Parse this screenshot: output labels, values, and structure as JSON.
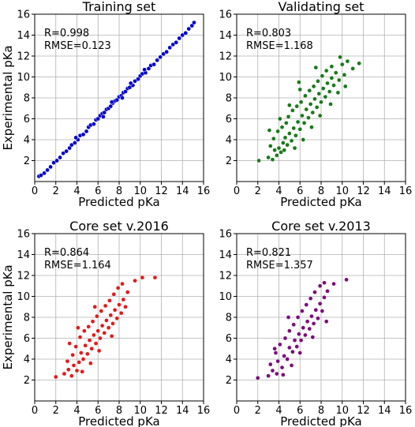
{
  "chart_data": [
    {
      "type": "scatter",
      "title": "Training set",
      "xlabel": "Predicted pKa",
      "ylabel": "Experimental pKa",
      "xlim": [
        0,
        16
      ],
      "ylim": [
        0,
        16
      ],
      "xticks": [
        0,
        2,
        4,
        6,
        8,
        10,
        12,
        14,
        16
      ],
      "yticks": [
        2,
        4,
        6,
        8,
        10,
        12,
        14,
        16
      ],
      "grid": true,
      "color": "#0000cc",
      "annotations": [
        "R=0.998",
        "RMSE=0.123"
      ],
      "points": [
        [
          0.4,
          0.5
        ],
        [
          0.6,
          0.6
        ],
        [
          0.9,
          0.8
        ],
        [
          1.2,
          1.1
        ],
        [
          1.5,
          1.4
        ],
        [
          1.8,
          1.8
        ],
        [
          2.1,
          2.0
        ],
        [
          2.4,
          2.3
        ],
        [
          2.7,
          2.7
        ],
        [
          3.0,
          2.9
        ],
        [
          3.3,
          3.2
        ],
        [
          3.5,
          3.5
        ],
        [
          3.8,
          3.7
        ],
        [
          4.1,
          4.0
        ],
        [
          4.3,
          4.4
        ],
        [
          4.6,
          4.5
        ],
        [
          4.9,
          4.8
        ],
        [
          5.1,
          5.2
        ],
        [
          5.3,
          5.4
        ],
        [
          5.6,
          5.5
        ],
        [
          5.8,
          5.9
        ],
        [
          6.0,
          6.0
        ],
        [
          6.2,
          6.3
        ],
        [
          6.4,
          6.5
        ],
        [
          6.6,
          6.6
        ],
        [
          6.8,
          6.9
        ],
        [
          7.0,
          7.0
        ],
        [
          7.2,
          7.2
        ],
        [
          7.4,
          7.5
        ],
        [
          7.6,
          7.7
        ],
        [
          7.8,
          7.8
        ],
        [
          8.0,
          8.1
        ],
        [
          8.2,
          8.2
        ],
        [
          8.4,
          8.5
        ],
        [
          8.6,
          8.6
        ],
        [
          8.8,
          8.9
        ],
        [
          9.0,
          9.0
        ],
        [
          9.3,
          9.2
        ],
        [
          9.5,
          9.6
        ],
        [
          9.8,
          9.8
        ],
        [
          10.0,
          10.1
        ],
        [
          10.2,
          10.3
        ],
        [
          10.5,
          10.4
        ],
        [
          10.8,
          10.8
        ],
        [
          11.0,
          11.1
        ],
        [
          11.3,
          11.2
        ],
        [
          11.6,
          11.6
        ],
        [
          11.9,
          11.9
        ],
        [
          12.2,
          12.2
        ],
        [
          12.5,
          12.4
        ],
        [
          12.8,
          12.8
        ],
        [
          13.1,
          13.1
        ],
        [
          13.4,
          13.3
        ],
        [
          13.7,
          13.7
        ],
        [
          14.0,
          14.0
        ],
        [
          14.3,
          14.2
        ],
        [
          14.6,
          14.6
        ],
        [
          14.9,
          14.9
        ],
        [
          15.1,
          15.2
        ],
        [
          6.5,
          6.2
        ],
        [
          7.3,
          7.6
        ],
        [
          8.3,
          8.0
        ],
        [
          9.1,
          9.4
        ],
        [
          10.4,
          10.7
        ],
        [
          3.9,
          4.2
        ]
      ]
    },
    {
      "type": "scatter",
      "title": "Validating set",
      "xlabel": "Predicted pKa",
      "ylabel": "",
      "xlim": [
        0,
        16
      ],
      "ylim": [
        0,
        16
      ],
      "xticks": [
        0,
        2,
        4,
        6,
        8,
        10,
        12,
        14,
        16
      ],
      "yticks": [
        2,
        4,
        6,
        8,
        10,
        12,
        14,
        16
      ],
      "grid": true,
      "color": "#1a7a1a",
      "annotations": [
        "R=0.803",
        "RMSE=1.168"
      ],
      "points": [
        [
          2.1,
          2.0
        ],
        [
          3.0,
          2.3
        ],
        [
          3.4,
          2.1
        ],
        [
          3.8,
          2.5
        ],
        [
          3.2,
          3.4
        ],
        [
          3.6,
          3.0
        ],
        [
          4.0,
          3.2
        ],
        [
          3.5,
          4.1
        ],
        [
          4.2,
          2.8
        ],
        [
          4.4,
          3.7
        ],
        [
          3.9,
          4.8
        ],
        [
          4.6,
          4.2
        ],
        [
          4.8,
          3.5
        ],
        [
          4.3,
          5.2
        ],
        [
          5.0,
          4.6
        ],
        [
          4.7,
          5.6
        ],
        [
          5.2,
          3.9
        ],
        [
          5.4,
          5.1
        ],
        [
          4.9,
          6.2
        ],
        [
          5.6,
          4.4
        ],
        [
          5.8,
          5.7
        ],
        [
          5.3,
          6.8
        ],
        [
          6.0,
          5.0
        ],
        [
          6.2,
          6.3
        ],
        [
          5.7,
          7.2
        ],
        [
          6.4,
          5.6
        ],
        [
          6.6,
          6.9
        ],
        [
          6.1,
          7.6
        ],
        [
          6.8,
          6.1
        ],
        [
          7.0,
          7.4
        ],
        [
          6.5,
          8.2
        ],
        [
          7.2,
          6.6
        ],
        [
          7.4,
          7.9
        ],
        [
          6.9,
          8.7
        ],
        [
          7.6,
          7.1
        ],
        [
          7.8,
          8.4
        ],
        [
          7.3,
          9.1
        ],
        [
          8.0,
          7.6
        ],
        [
          8.2,
          8.9
        ],
        [
          7.7,
          9.6
        ],
        [
          8.4,
          8.1
        ],
        [
          8.6,
          9.4
        ],
        [
          8.1,
          10.1
        ],
        [
          8.8,
          8.6
        ],
        [
          9.0,
          9.9
        ],
        [
          8.5,
          10.6
        ],
        [
          9.2,
          9.2
        ],
        [
          9.4,
          10.4
        ],
        [
          9.0,
          11.0
        ],
        [
          9.7,
          9.7
        ],
        [
          10.0,
          11.2
        ],
        [
          10.2,
          10.2
        ],
        [
          10.5,
          11.5
        ],
        [
          11.0,
          10.8
        ],
        [
          11.6,
          11.3
        ],
        [
          9.8,
          11.9
        ],
        [
          5.5,
          3.2
        ],
        [
          6.3,
          4.0
        ],
        [
          7.1,
          5.2
        ],
        [
          7.9,
          6.3
        ],
        [
          4.1,
          6.0
        ],
        [
          5.0,
          7.3
        ],
        [
          6.0,
          8.8
        ],
        [
          3.1,
          4.9
        ],
        [
          8.9,
          7.4
        ],
        [
          9.6,
          8.5
        ],
        [
          10.3,
          9.1
        ],
        [
          4.5,
          3.0
        ],
        [
          5.9,
          9.5
        ],
        [
          7.5,
          10.9
        ]
      ]
    },
    {
      "type": "scatter",
      "title": "Core set v.2016",
      "xlabel": "Predicted pKa",
      "ylabel": "Experimental pKa",
      "xlim": [
        0,
        16
      ],
      "ylim": [
        0,
        16
      ],
      "xticks": [
        0,
        2,
        4,
        6,
        8,
        10,
        12,
        14,
        16
      ],
      "yticks": [
        2,
        4,
        6,
        8,
        10,
        12,
        14,
        16
      ],
      "grid": true,
      "color": "#e31a1a",
      "annotations": [
        "R=0.864",
        "RMSE=1.164"
      ],
      "points": [
        [
          2.0,
          2.3
        ],
        [
          2.8,
          2.6
        ],
        [
          3.2,
          3.0
        ],
        [
          3.5,
          2.4
        ],
        [
          3.1,
          3.8
        ],
        [
          3.7,
          3.4
        ],
        [
          4.0,
          2.9
        ],
        [
          3.6,
          4.4
        ],
        [
          4.2,
          3.7
        ],
        [
          4.4,
          4.6
        ],
        [
          3.9,
          5.2
        ],
        [
          4.6,
          4.0
        ],
        [
          4.8,
          5.3
        ],
        [
          4.3,
          6.1
        ],
        [
          5.0,
          4.5
        ],
        [
          5.2,
          5.8
        ],
        [
          4.7,
          6.7
        ],
        [
          5.4,
          5.0
        ],
        [
          5.6,
          6.3
        ],
        [
          5.1,
          7.1
        ],
        [
          5.8,
          5.5
        ],
        [
          6.0,
          6.7
        ],
        [
          5.5,
          7.6
        ],
        [
          6.2,
          6.0
        ],
        [
          6.4,
          7.2
        ],
        [
          5.9,
          8.1
        ],
        [
          6.6,
          6.5
        ],
        [
          6.8,
          7.7
        ],
        [
          6.3,
          8.6
        ],
        [
          7.0,
          7.0
        ],
        [
          7.2,
          8.2
        ],
        [
          6.7,
          9.1
        ],
        [
          7.4,
          7.4
        ],
        [
          7.6,
          8.7
        ],
        [
          7.1,
          9.6
        ],
        [
          7.8,
          7.9
        ],
        [
          8.0,
          9.2
        ],
        [
          7.5,
          10.2
        ],
        [
          8.2,
          8.4
        ],
        [
          8.4,
          9.7
        ],
        [
          7.9,
          10.8
        ],
        [
          8.6,
          9.0
        ],
        [
          8.8,
          10.4
        ],
        [
          8.3,
          11.2
        ],
        [
          9.5,
          11.5
        ],
        [
          10.2,
          11.8
        ],
        [
          11.4,
          11.8
        ],
        [
          4.5,
          2.8
        ],
        [
          5.3,
          3.6
        ],
        [
          6.1,
          4.8
        ],
        [
          7.3,
          6.2
        ],
        [
          3.3,
          5.5
        ],
        [
          4.1,
          7.0
        ],
        [
          5.7,
          9.0
        ]
      ]
    },
    {
      "type": "scatter",
      "title": "Core set v.2013",
      "xlabel": "Predicted pKa",
      "ylabel": "",
      "xlim": [
        0,
        16
      ],
      "ylim": [
        0,
        16
      ],
      "xticks": [
        0,
        2,
        4,
        6,
        8,
        10,
        12,
        14,
        16
      ],
      "yticks": [
        2,
        4,
        6,
        8,
        10,
        12,
        14,
        16
      ],
      "grid": true,
      "color": "#7b0e7b",
      "annotations": [
        "R=0.821",
        "RMSE=1.357"
      ],
      "points": [
        [
          2.0,
          2.2
        ],
        [
          3.0,
          2.4
        ],
        [
          3.4,
          2.9
        ],
        [
          3.8,
          2.6
        ],
        [
          3.2,
          3.5
        ],
        [
          3.9,
          3.8
        ],
        [
          4.3,
          3.2
        ],
        [
          3.7,
          4.6
        ],
        [
          4.5,
          4.3
        ],
        [
          4.1,
          5.4
        ],
        [
          4.8,
          4.0
        ],
        [
          5.0,
          5.1
        ],
        [
          4.6,
          6.0
        ],
        [
          5.3,
          4.7
        ],
        [
          5.5,
          5.8
        ],
        [
          5.0,
          6.7
        ],
        [
          5.7,
          5.2
        ],
        [
          5.9,
          6.4
        ],
        [
          5.4,
          7.3
        ],
        [
          6.1,
          5.8
        ],
        [
          6.3,
          7.0
        ],
        [
          5.8,
          8.0
        ],
        [
          6.5,
          6.3
        ],
        [
          6.7,
          7.6
        ],
        [
          6.2,
          8.6
        ],
        [
          6.9,
          6.9
        ],
        [
          7.1,
          8.1
        ],
        [
          6.6,
          9.2
        ],
        [
          7.3,
          7.4
        ],
        [
          7.5,
          8.7
        ],
        [
          7.0,
          9.8
        ],
        [
          7.7,
          7.9
        ],
        [
          7.9,
          9.3
        ],
        [
          7.4,
          10.4
        ],
        [
          8.1,
          8.6
        ],
        [
          8.3,
          9.9
        ],
        [
          7.9,
          11.0
        ],
        [
          8.6,
          10.5
        ],
        [
          8.3,
          11.3
        ],
        [
          9.2,
          11.2
        ],
        [
          10.4,
          11.6
        ],
        [
          4.4,
          2.5
        ],
        [
          5.2,
          3.4
        ],
        [
          6.0,
          4.6
        ],
        [
          7.2,
          6.1
        ],
        [
          3.6,
          5.0
        ],
        [
          4.9,
          8.0
        ],
        [
          8.5,
          7.6
        ]
      ]
    }
  ]
}
